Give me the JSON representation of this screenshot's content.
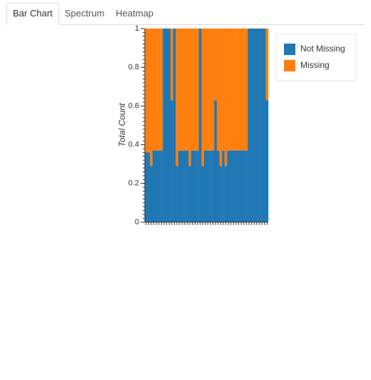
{
  "tabs": [
    "Bar Chart",
    "Spectrum",
    "Heatmap"
  ],
  "chart_data": {
    "type": "stacked_bar",
    "ylabel": "Total Count",
    "categories": [
      null,
      null,
      null,
      null,
      null,
      null,
      null,
      null,
      null,
      null,
      null,
      null,
      null,
      null,
      null,
      null,
      null,
      null,
      null,
      null,
      null,
      null,
      null,
      null,
      null,
      null,
      null,
      null,
      null,
      null,
      null,
      null,
      null,
      null,
      null,
      null,
      null,
      null,
      null,
      null,
      null,
      null,
      null,
      null,
      null,
      null,
      null,
      null
    ],
    "series": [
      {
        "name": "Not Missing",
        "color": "#1f77b4",
        "values": [
          0.36,
          0.36,
          0.29,
          0.37,
          0.37,
          0.37,
          0.37,
          1,
          1,
          1,
          0.63,
          1,
          0.29,
          0.37,
          0.37,
          0.37,
          0.37,
          0.29,
          0.37,
          0.37,
          0.37,
          1,
          0.29,
          0.37,
          0.37,
          0.37,
          0.37,
          0.63,
          0.37,
          0.29,
          0.37,
          0.29,
          0.37,
          0.37,
          0.37,
          0.37,
          0.37,
          0.37,
          0.37,
          0.37,
          1,
          1,
          1,
          1,
          1,
          1,
          1,
          0.63
        ]
      },
      {
        "name": "Missing",
        "color": "#ff7f0e",
        "values": [
          0.64,
          0.64,
          0.71,
          0.63,
          0.63,
          0.63,
          0.63,
          0,
          0,
          0,
          0.37,
          0,
          0.71,
          0.63,
          0.63,
          0.63,
          0.63,
          0.71,
          0.63,
          0.63,
          0.63,
          0,
          0.71,
          0.63,
          0.63,
          0.63,
          0.63,
          0.37,
          0.63,
          0.71,
          0.63,
          0.71,
          0.63,
          0.63,
          0.63,
          0.63,
          0.63,
          0.63,
          0.63,
          0.63,
          0,
          0,
          0,
          0,
          0,
          0,
          0,
          0.37
        ]
      }
    ],
    "ylim": [
      0,
      1
    ],
    "yticks": [
      0,
      0.2,
      0.4,
      0.6,
      0.8,
      1
    ],
    "legend": "right"
  }
}
